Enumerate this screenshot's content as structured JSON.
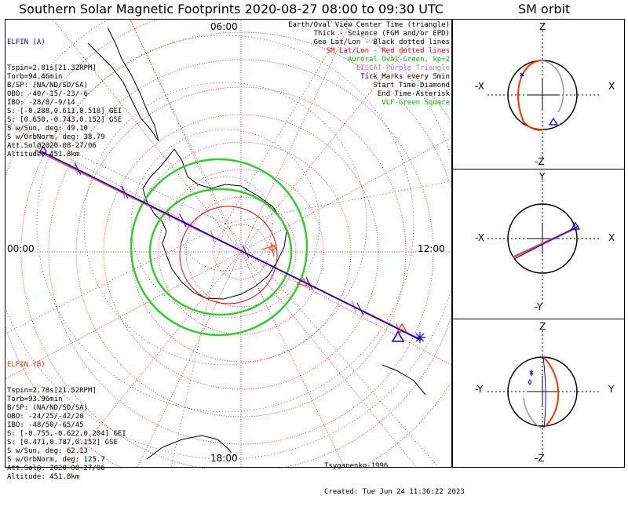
{
  "main_title": "Southern Solar Magnetic Footprints 2020-08-27 08:00 to 09:30 UTC",
  "orbit_title": "SM orbit",
  "clock_labels": {
    "top": "06:00",
    "left": "00:00",
    "right": "12:00",
    "bottom": "18:00"
  },
  "elfin_a": {
    "header": "ELFIN (A)",
    "lines": [
      "Tspin=2.81s[21.32RPM]",
      "Torb=94.46min",
      "B/SP: (NA/ND/SD/SA)",
      "OBO: -40/-15/-23/-6",
      "IBO: -28/8/-9/14",
      "S: [-0.288,0.611,0.518] GEI",
      "S: [0.650,-0.743,0.152] GSE",
      "S w/Sun, deg: 49.10",
      "S w/OrbNorm, deg: 38.79",
      "Att.Sol@2020-08-27/06",
      "Altitude: 451.8km"
    ],
    "color": "#0000ff"
  },
  "elfin_b": {
    "header": "ELFIN (B)",
    "lines": [
      "Tspin=2.78s[21.52RPM]",
      "Torb=93.96min",
      "B/SP: (NA/ND/SD/SA)",
      "OBO: -24/25/-42/20",
      "IBO: -48/50/-65/45",
      "S: [-0.755,-0.622,0.204] GEI",
      "S: [0.471,0.787,0.152] GSE",
      "S w/Sun, deg: 62.13",
      "S w/OrbNorm, deg: 125.7",
      "Att.Sol@: 2020-08-27/06",
      "Altitude: 451.8km"
    ],
    "color": "#ff3300"
  },
  "legend": [
    {
      "text": "Earth/Oval View Center Time (triangle)",
      "color": "#000000"
    },
    {
      "text": "Thick - Science (FGM and/or EPD)",
      "color": "#000000"
    },
    {
      "text": "Geo Lat/Lon - Black dotted lines",
      "color": "#000000"
    },
    {
      "text": "SM Lat/Lon - Red dotted lines",
      "color": "#ff0000"
    },
    {
      "text": "Auroral Oval-Green, kp=2",
      "color": "#00c000"
    },
    {
      "text": "EISCAT-Purple Triangle",
      "color": "#cc66cc"
    },
    {
      "text": "Tick Marks every 5min",
      "color": "#000000"
    },
    {
      "text": "Start Time-Diamond",
      "color": "#000000"
    },
    {
      "text": "End Time-Asterisk",
      "color": "#000000"
    },
    {
      "text": "VLF-Green Square",
      "color": "#00c000"
    }
  ],
  "credit": {
    "author": "Tsyganenko-1996",
    "created": "Created: Tue Jun 24 11:36:22 2023"
  },
  "orbit_panels": [
    {
      "top": "Z",
      "bottom": "-Z",
      "left": "-X",
      "right": "X"
    },
    {
      "top": "Y",
      "bottom": "-Y",
      "left": "-X",
      "right": "X"
    },
    {
      "top": "Z",
      "bottom": "-Z",
      "left": "-Y",
      "right": "Y"
    }
  ]
}
